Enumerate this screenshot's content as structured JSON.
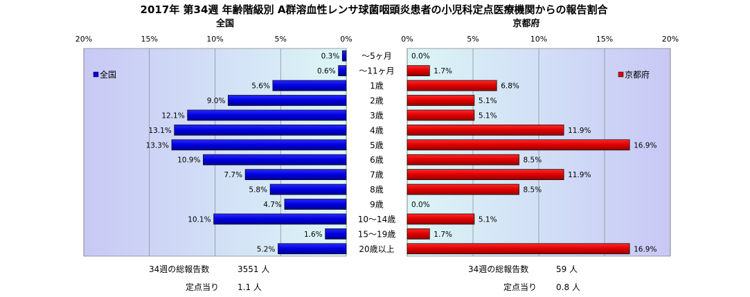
{
  "chart_data": {
    "type": "bar",
    "title": "2017年 第34週 年齢階級別 A群溶血性レンサ球菌咽頭炎患者の小児科定点医療機関からの報告割合",
    "categories": [
      "～5ヶ月",
      "～11ヶ月",
      "1歳",
      "2歳",
      "3歳",
      "4歳",
      "5歳",
      "6歳",
      "7歳",
      "8歳",
      "9歳",
      "10～14歳",
      "15～19歳",
      "20歳以上"
    ],
    "unit": "%",
    "xlim": [
      0,
      20
    ],
    "ticks": [
      "0%",
      "5%",
      "10%",
      "15%",
      "20%"
    ],
    "series": [
      {
        "name": "全国",
        "panel_title": "全国",
        "legend": "全国",
        "color": "#0000dd",
        "values": [
          0.3,
          0.6,
          5.6,
          9.0,
          12.1,
          13.1,
          13.3,
          10.9,
          7.7,
          5.8,
          4.7,
          10.1,
          1.6,
          5.2
        ],
        "labels": [
          "0.3%",
          "0.6%",
          "5.6%",
          "9.0%",
          "12.1%",
          "13.1%",
          "13.3%",
          "10.9%",
          "7.7%",
          "5.8%",
          "4.7%",
          "10.1%",
          "1.6%",
          "5.2%"
        ]
      },
      {
        "name": "京都府",
        "panel_title": "京都府",
        "legend": "京都府",
        "color": "#dd0000",
        "values": [
          0.0,
          1.7,
          6.8,
          5.1,
          5.1,
          11.9,
          16.9,
          8.5,
          11.9,
          8.5,
          0.0,
          5.1,
          1.7,
          16.9
        ],
        "labels": [
          "0.0%",
          "1.7%",
          "6.8%",
          "5.1%",
          "5.1%",
          "11.9%",
          "16.9%",
          "8.5%",
          "11.9%",
          "8.5%",
          "0.0%",
          "5.1%",
          "1.7%",
          "16.9%"
        ]
      }
    ],
    "grid": true,
    "legend_position": "top-left / top-right"
  },
  "footer": {
    "national": {
      "total_label": "34週の総報告数",
      "total_value": "3551 人",
      "per_label": "定点当り",
      "per_value": "1.1 人"
    },
    "kyoto": {
      "total_label": "34週の総報告数",
      "total_value": "59 人",
      "per_label": "定点当り",
      "per_value": "0.8 人"
    }
  }
}
